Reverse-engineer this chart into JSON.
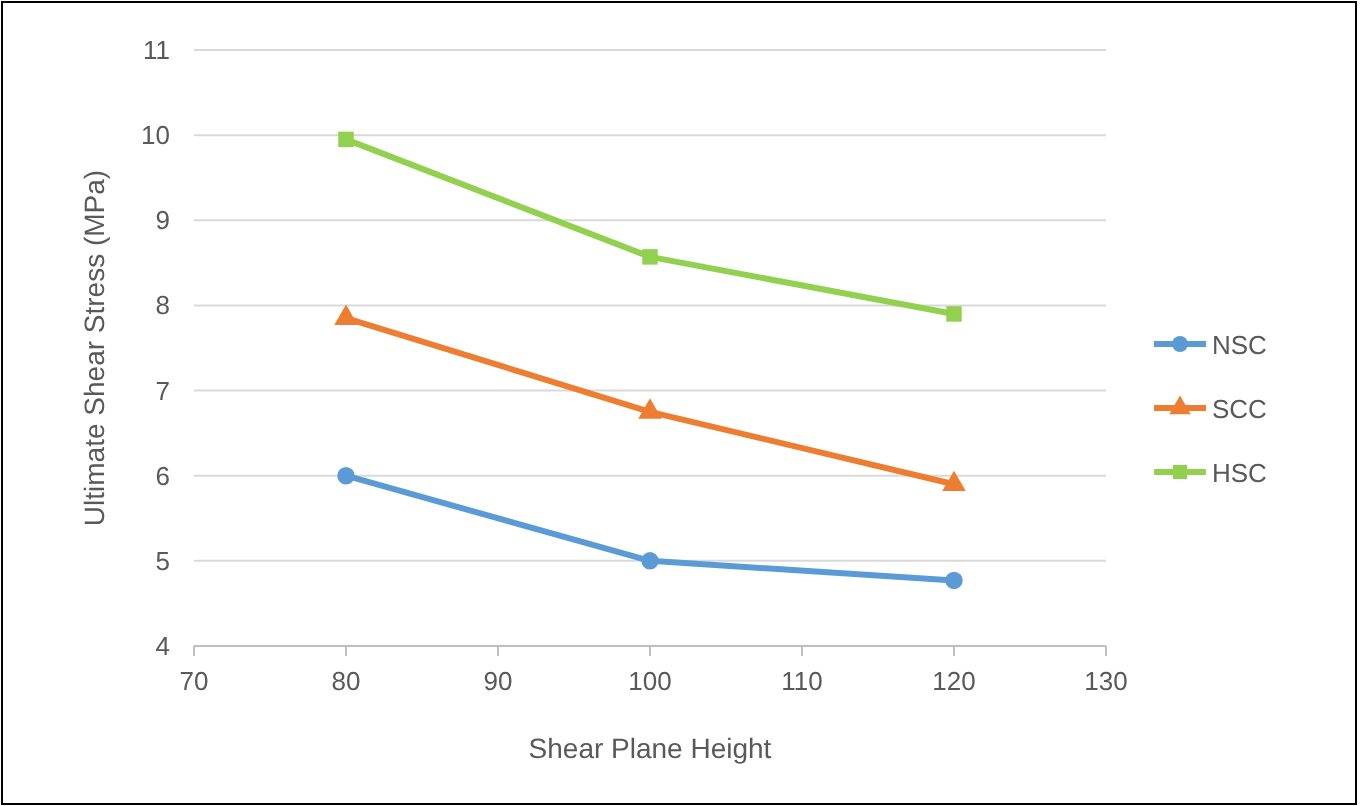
{
  "chart_data": {
    "type": "line",
    "xlabel": "Shear Plane Height",
    "ylabel": "Ultimate Shear Stress (MPa)",
    "x": [
      80,
      100,
      120
    ],
    "xlim": [
      70,
      130
    ],
    "xticks": [
      70,
      80,
      90,
      100,
      110,
      120,
      130
    ],
    "ylim": [
      4,
      11
    ],
    "yticks": [
      4,
      5,
      6,
      7,
      8,
      9,
      10,
      11
    ],
    "grid": "y",
    "legend": "right",
    "line_style": "solid",
    "series": [
      {
        "name": "NSC",
        "color": "#5b9bd5",
        "marker": "circle",
        "values": [
          6.0,
          5.0,
          4.77
        ]
      },
      {
        "name": "SCC",
        "color": "#ed7d31",
        "marker": "triangle",
        "values": [
          7.85,
          6.75,
          5.9
        ]
      },
      {
        "name": "HSC",
        "color": "#92d050",
        "marker": "square",
        "values": [
          9.95,
          8.57,
          7.9
        ]
      }
    ]
  }
}
